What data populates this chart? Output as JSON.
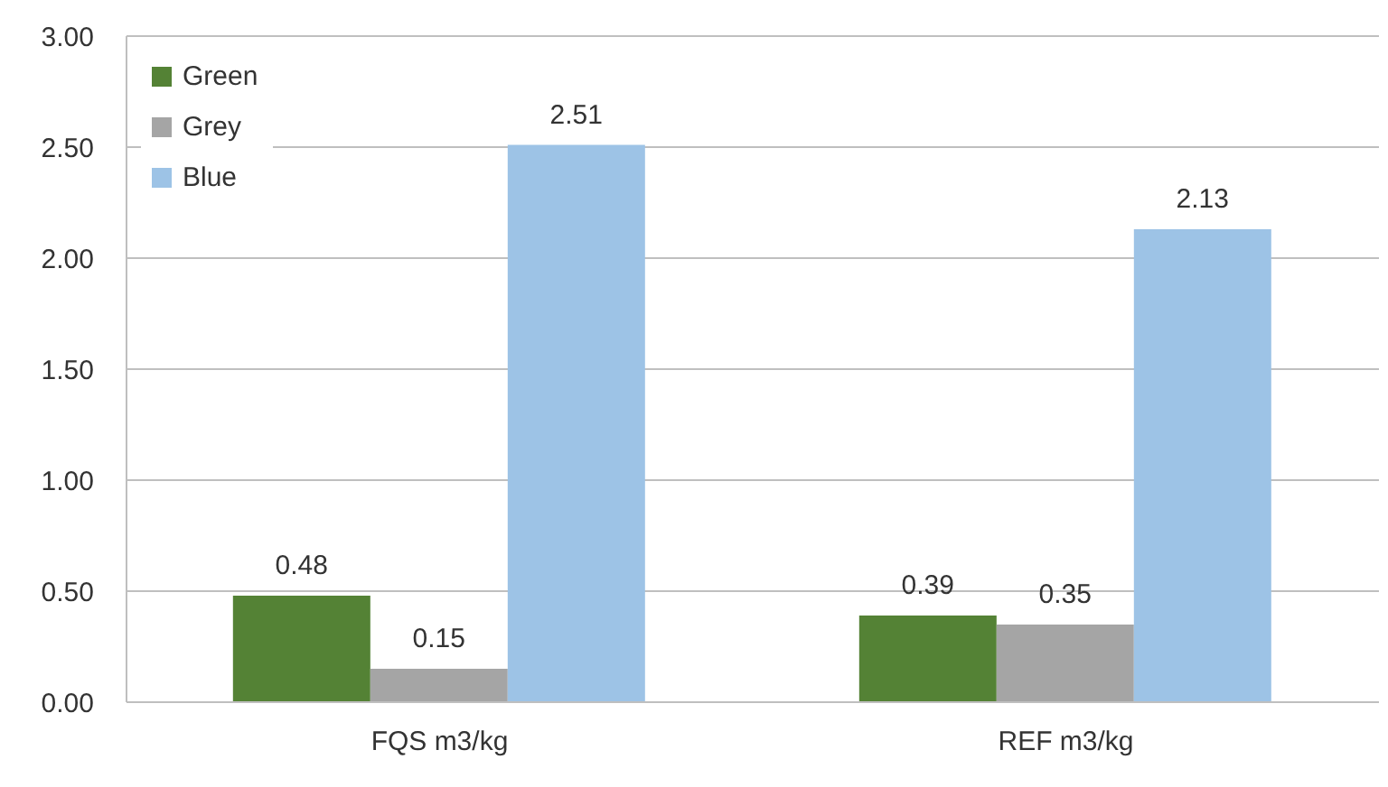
{
  "chart_data": {
    "type": "bar",
    "categories": [
      "FQS m3/kg",
      "REF m3/kg"
    ],
    "series": [
      {
        "name": "Green",
        "color": "#548235",
        "values": [
          0.48,
          0.39
        ]
      },
      {
        "name": "Grey",
        "color": "#a5a5a5",
        "values": [
          0.15,
          0.35
        ]
      },
      {
        "name": "Blue",
        "color": "#9dc3e6",
        "values": [
          2.51,
          2.13
        ]
      }
    ],
    "ylim": [
      0,
      3
    ],
    "yticks": [
      {
        "value": 0,
        "label": "0.00"
      },
      {
        "value": 0.5,
        "label": "0.50"
      },
      {
        "value": 1,
        "label": "1.00"
      },
      {
        "value": 1.5,
        "label": "1.50"
      },
      {
        "value": 2,
        "label": "2.00"
      },
      {
        "value": 2.5,
        "label": "2.50"
      },
      {
        "value": 3,
        "label": "3.00"
      }
    ],
    "grid": "y",
    "legend": "top left",
    "data_labels": true
  }
}
